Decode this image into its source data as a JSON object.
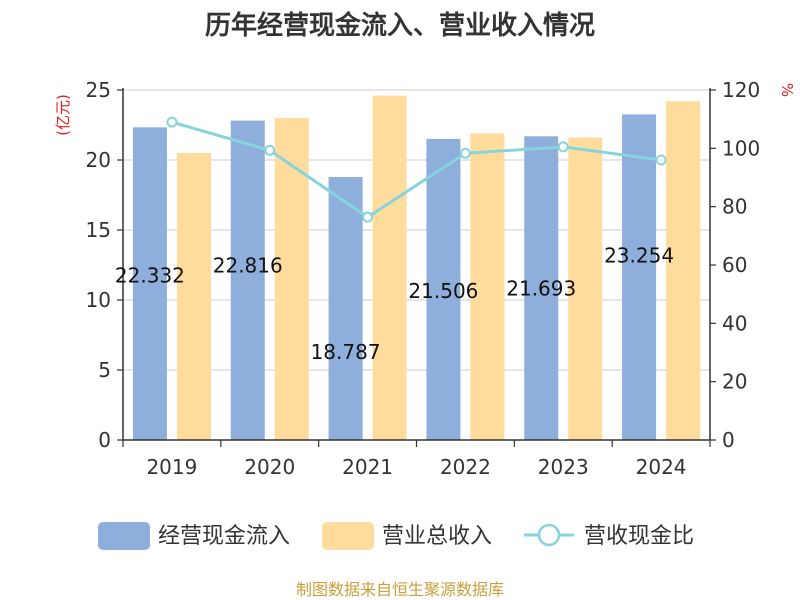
{
  "colors": {
    "cash_inflow": "#8eaedb",
    "revenue": "#ffdb9c",
    "ratio_line": "#86d4dc",
    "axis_unit": "#e8191c",
    "source_text": "#c8a03c"
  },
  "chart_data": {
    "type": "bar",
    "title": "历年经营现金流入、营业收入情况",
    "categories": [
      "2019",
      "2020",
      "2021",
      "2022",
      "2023",
      "2024"
    ],
    "y_left": {
      "label": "(亿元)",
      "ylim": [
        0,
        25
      ],
      "ticks": [
        0,
        5,
        10,
        15,
        20,
        25
      ]
    },
    "y_right": {
      "label": "%",
      "ylim": [
        0,
        120
      ],
      "ticks": [
        0,
        20,
        40,
        60,
        80,
        100,
        120
      ]
    },
    "series": [
      {
        "name": "经营现金流入",
        "kind": "bar",
        "axis": "left",
        "values": [
          22.332,
          22.816,
          18.787,
          21.506,
          21.693,
          23.254
        ],
        "labels": [
          "22.332",
          "22.816",
          "18.787",
          "21.506",
          "21.693",
          "23.254"
        ]
      },
      {
        "name": "营业总收入",
        "kind": "bar",
        "axis": "left",
        "values": [
          20.5,
          23.0,
          24.6,
          21.9,
          21.6,
          24.2
        ]
      },
      {
        "name": "营收现金比",
        "kind": "line",
        "axis": "right",
        "values": [
          109.0,
          99.3,
          76.4,
          98.3,
          100.5,
          96.0
        ]
      }
    ],
    "grid": true,
    "legend_position": "bottom"
  },
  "footer": {
    "source": "制图数据来自恒生聚源数据库"
  }
}
